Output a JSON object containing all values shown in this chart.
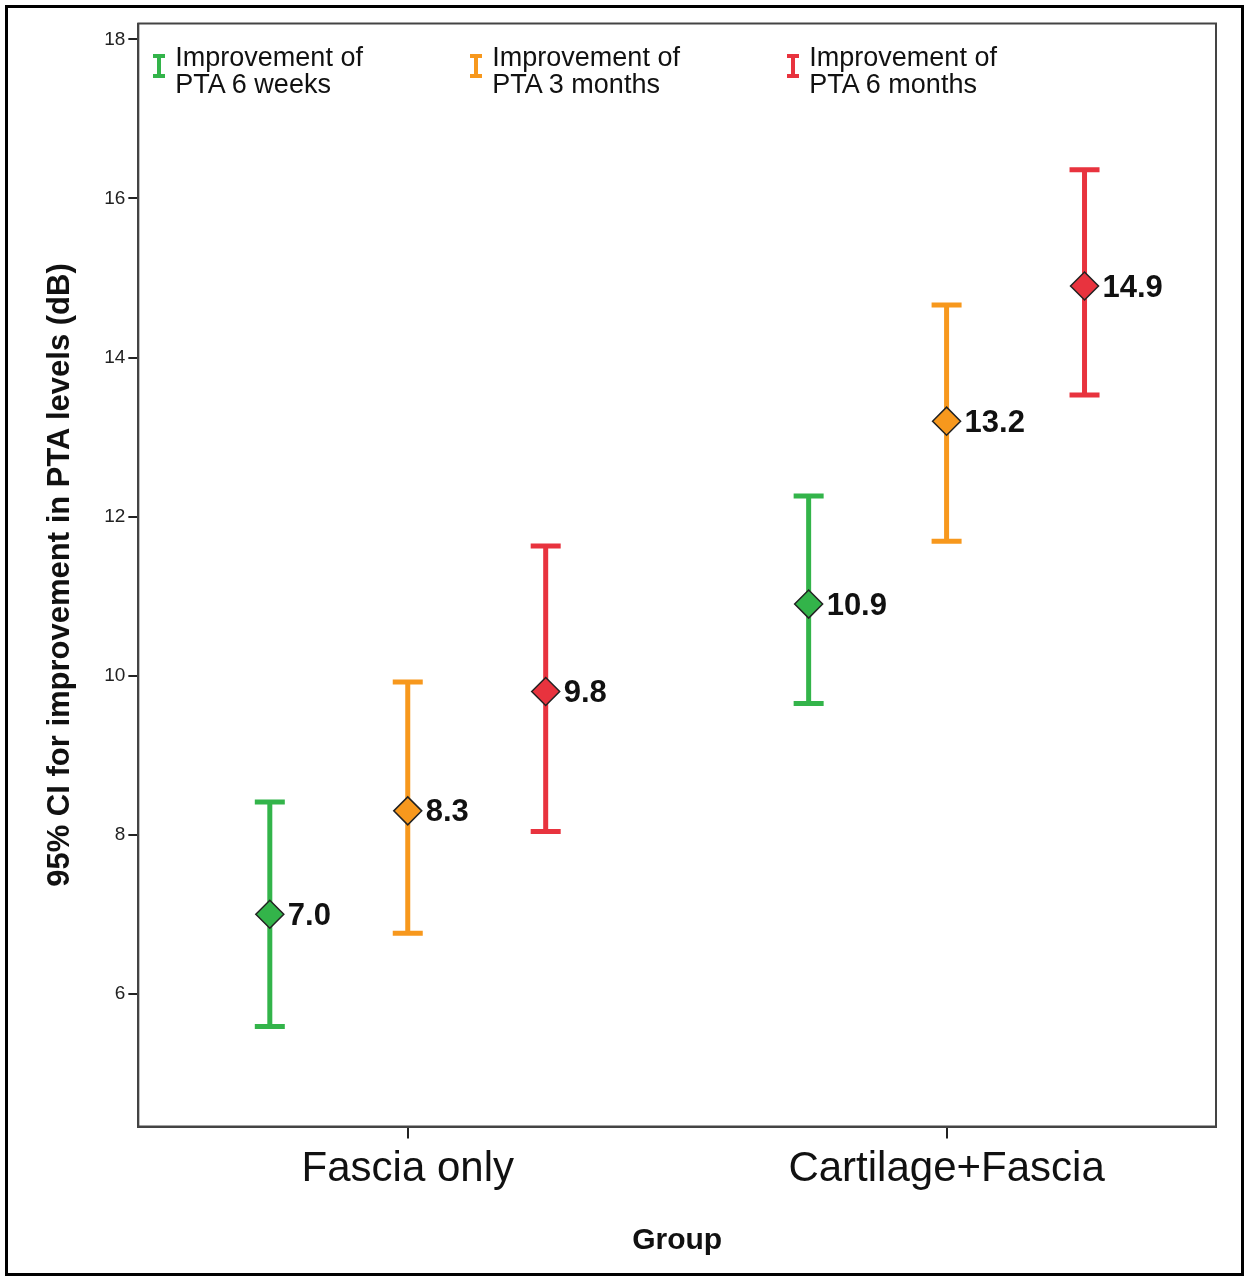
{
  "chart_data": {
    "type": "scatter",
    "xlabel": "Group",
    "ylabel": "95% CI for improvement in PTA levels (dB)",
    "categories": [
      "Fascia only",
      "Cartilage+Fascia"
    ],
    "marker": "diamond",
    "legend": "top",
    "ylim": [
      4.33,
      18.2
    ],
    "yticks": [
      6,
      8,
      10,
      12,
      14,
      16,
      18
    ],
    "series": [
      {
        "name": "Improvement of PTA 6 weeks",
        "color": "#33b44a",
        "values": [
          7.0,
          10.9
        ],
        "errors": [
          [
            5.59,
            8.41
          ],
          [
            9.65,
            12.26
          ]
        ],
        "value_labels": [
          "7.0",
          "10.9"
        ]
      },
      {
        "name": "Improvement of PTA 3 months",
        "color": "#f7981d",
        "values": [
          8.3,
          13.2
        ],
        "errors": [
          [
            6.76,
            9.92
          ],
          [
            11.69,
            14.66
          ]
        ],
        "value_labels": [
          "8.3",
          "13.2"
        ]
      },
      {
        "name": "Improvement of PTA 6 months",
        "color": "#e8333e",
        "values": [
          9.8,
          14.9
        ],
        "errors": [
          [
            8.04,
            11.63
          ],
          [
            13.53,
            16.36
          ]
        ],
        "value_labels": [
          "9.8",
          "14.9"
        ]
      }
    ]
  }
}
